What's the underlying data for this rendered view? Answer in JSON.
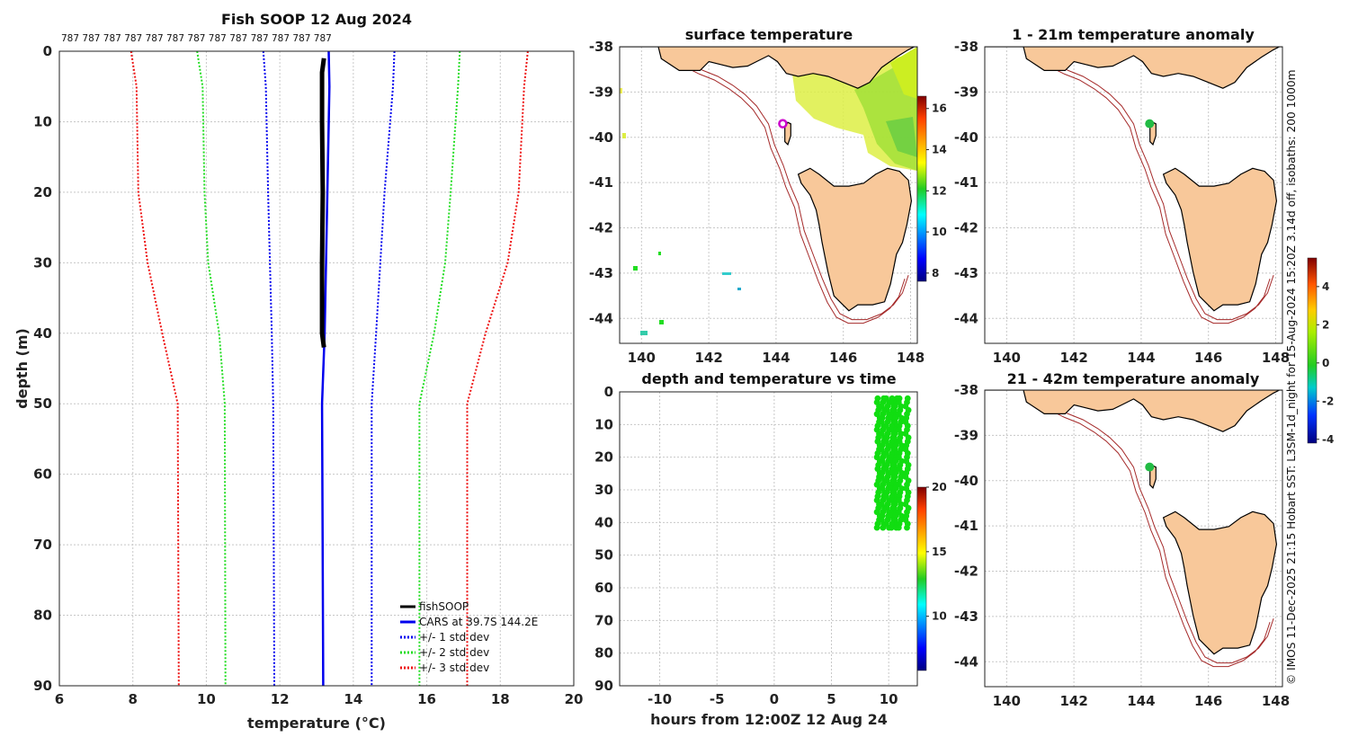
{
  "credit": "© IMOS 11-Dec-2025 21:15 Hobart SST: L3SM-1d_night for 15-Aug-2024 15:20Z 3.14d off, isobaths: 200  1000m",
  "colors": {
    "fishsoop": "#000000",
    "cars": "#0000ee",
    "std1": "#0000ee",
    "std2": "#22dd22",
    "std3": "#ee1111",
    "land": "#f8c89a",
    "isobath": "#a52a2a",
    "marker": "#cc00cc",
    "anomaly_dot": "#22bb44"
  },
  "chart_data": [
    {
      "id": "profile",
      "type": "line",
      "title": "Fish SOOP 12 Aug 2024",
      "xlabel": "temperature (°C)",
      "ylabel": "depth (m)",
      "xlim": [
        6,
        20
      ],
      "ylim": [
        0,
        90
      ],
      "xticks": [
        "6",
        "8",
        "10",
        "12",
        "14",
        "16",
        "18",
        "20"
      ],
      "yticks": [
        "0",
        "10",
        "20",
        "30",
        "40",
        "50",
        "60",
        "70",
        "80",
        "90"
      ],
      "top_labels": [
        "787",
        "787",
        "787",
        "787",
        "787",
        "787",
        "787",
        "787",
        "787",
        "787",
        "787",
        "787",
        "787"
      ],
      "legend": [
        "fishSOOP",
        "CARS at 39.7S 144.2E",
        "+/- 1 std dev",
        "+/- 2 std dev",
        "+/- 3 std dev"
      ],
      "fishsoop": {
        "depth": [
          1,
          3,
          10,
          20,
          30,
          40,
          42
        ],
        "temp": [
          13.2,
          13.15,
          13.15,
          13.17,
          13.15,
          13.15,
          13.2
        ]
      },
      "cars": {
        "depth": [
          0,
          5,
          40,
          50,
          90
        ],
        "temp": [
          13.33,
          13.35,
          13.22,
          13.15,
          13.18
        ]
      },
      "std_bands": [
        {
          "name": "std1",
          "depth": [
            0,
            5,
            20,
            40,
            50,
            90
          ],
          "lo": [
            11.55,
            11.62,
            11.68,
            11.78,
            11.82,
            11.85
          ],
          "hi": [
            15.12,
            15.08,
            14.85,
            14.62,
            14.5,
            14.5
          ]
        },
        {
          "name": "std2",
          "depth": [
            0,
            5,
            20,
            30,
            40,
            50,
            90
          ],
          "lo": [
            9.75,
            9.9,
            9.95,
            10.05,
            10.35,
            10.5,
            10.52
          ],
          "hi": [
            16.9,
            16.85,
            16.65,
            16.5,
            16.2,
            15.8,
            15.8
          ]
        },
        {
          "name": "std3",
          "depth": [
            0,
            5,
            20,
            30,
            40,
            50,
            90
          ],
          "lo": [
            7.95,
            8.1,
            8.15,
            8.4,
            8.8,
            9.22,
            9.25
          ],
          "hi": [
            18.75,
            18.65,
            18.5,
            18.2,
            17.6,
            17.1,
            17.1
          ]
        }
      ]
    },
    {
      "id": "surface",
      "type": "map",
      "title": "surface temperature",
      "lon_ticks": [
        "140",
        "142",
        "144",
        "146",
        "148"
      ],
      "lat_ticks": [
        "-38",
        "-39",
        "-40",
        "-41",
        "-42",
        "-43",
        "-44"
      ],
      "colorbar": {
        "min": 7.6,
        "max": 16.6,
        "ticks": [
          "8",
          "10",
          "12",
          "14",
          "16"
        ]
      },
      "marker": {
        "lon": 144.2,
        "lat": -39.7
      }
    },
    {
      "id": "anom1",
      "type": "map",
      "title": "1 - 21m temperature anomaly",
      "lon_ticks": [
        "140",
        "142",
        "144",
        "146",
        "148"
      ],
      "lat_ticks": [
        "-38",
        "-39",
        "-40",
        "-41",
        "-42",
        "-43",
        "-44"
      ],
      "point": {
        "lon": 144.25,
        "lat": -39.7
      }
    },
    {
      "id": "anom2",
      "type": "map",
      "title": "21 - 42m temperature anomaly",
      "lon_ticks": [
        "140",
        "142",
        "144",
        "146",
        "148"
      ],
      "lat_ticks": [
        "-38",
        "-39",
        "-40",
        "-41",
        "-42",
        "-43",
        "-44"
      ],
      "point": {
        "lon": 144.25,
        "lat": -39.7
      }
    },
    {
      "id": "anom_colorbar",
      "type": "heatmap",
      "min": -4.2,
      "max": 5.5,
      "ticks": [
        "4",
        "2",
        "0",
        "-2",
        "-4"
      ]
    },
    {
      "id": "timeseries",
      "type": "scatter",
      "title": "depth and temperature vs time",
      "xlabel": "hours from 12:00Z 12 Aug 24",
      "xlim": [
        -13.5,
        12.5
      ],
      "ylim": [
        0,
        90
      ],
      "xticks": [
        "-10",
        "-5",
        "0",
        "5",
        "10"
      ],
      "yticks": [
        "0",
        "10",
        "20",
        "30",
        "40",
        "50",
        "60",
        "70",
        "80",
        "90"
      ],
      "columns_hours": [
        9.1,
        9.5,
        9.9,
        10.3,
        10.6,
        11.0,
        11.6
      ],
      "depth_range": [
        2,
        42
      ],
      "temperature": 13.2,
      "colorbar": {
        "min": 5.8,
        "max": 20,
        "ticks": [
          "20",
          "15",
          "10"
        ]
      }
    }
  ]
}
